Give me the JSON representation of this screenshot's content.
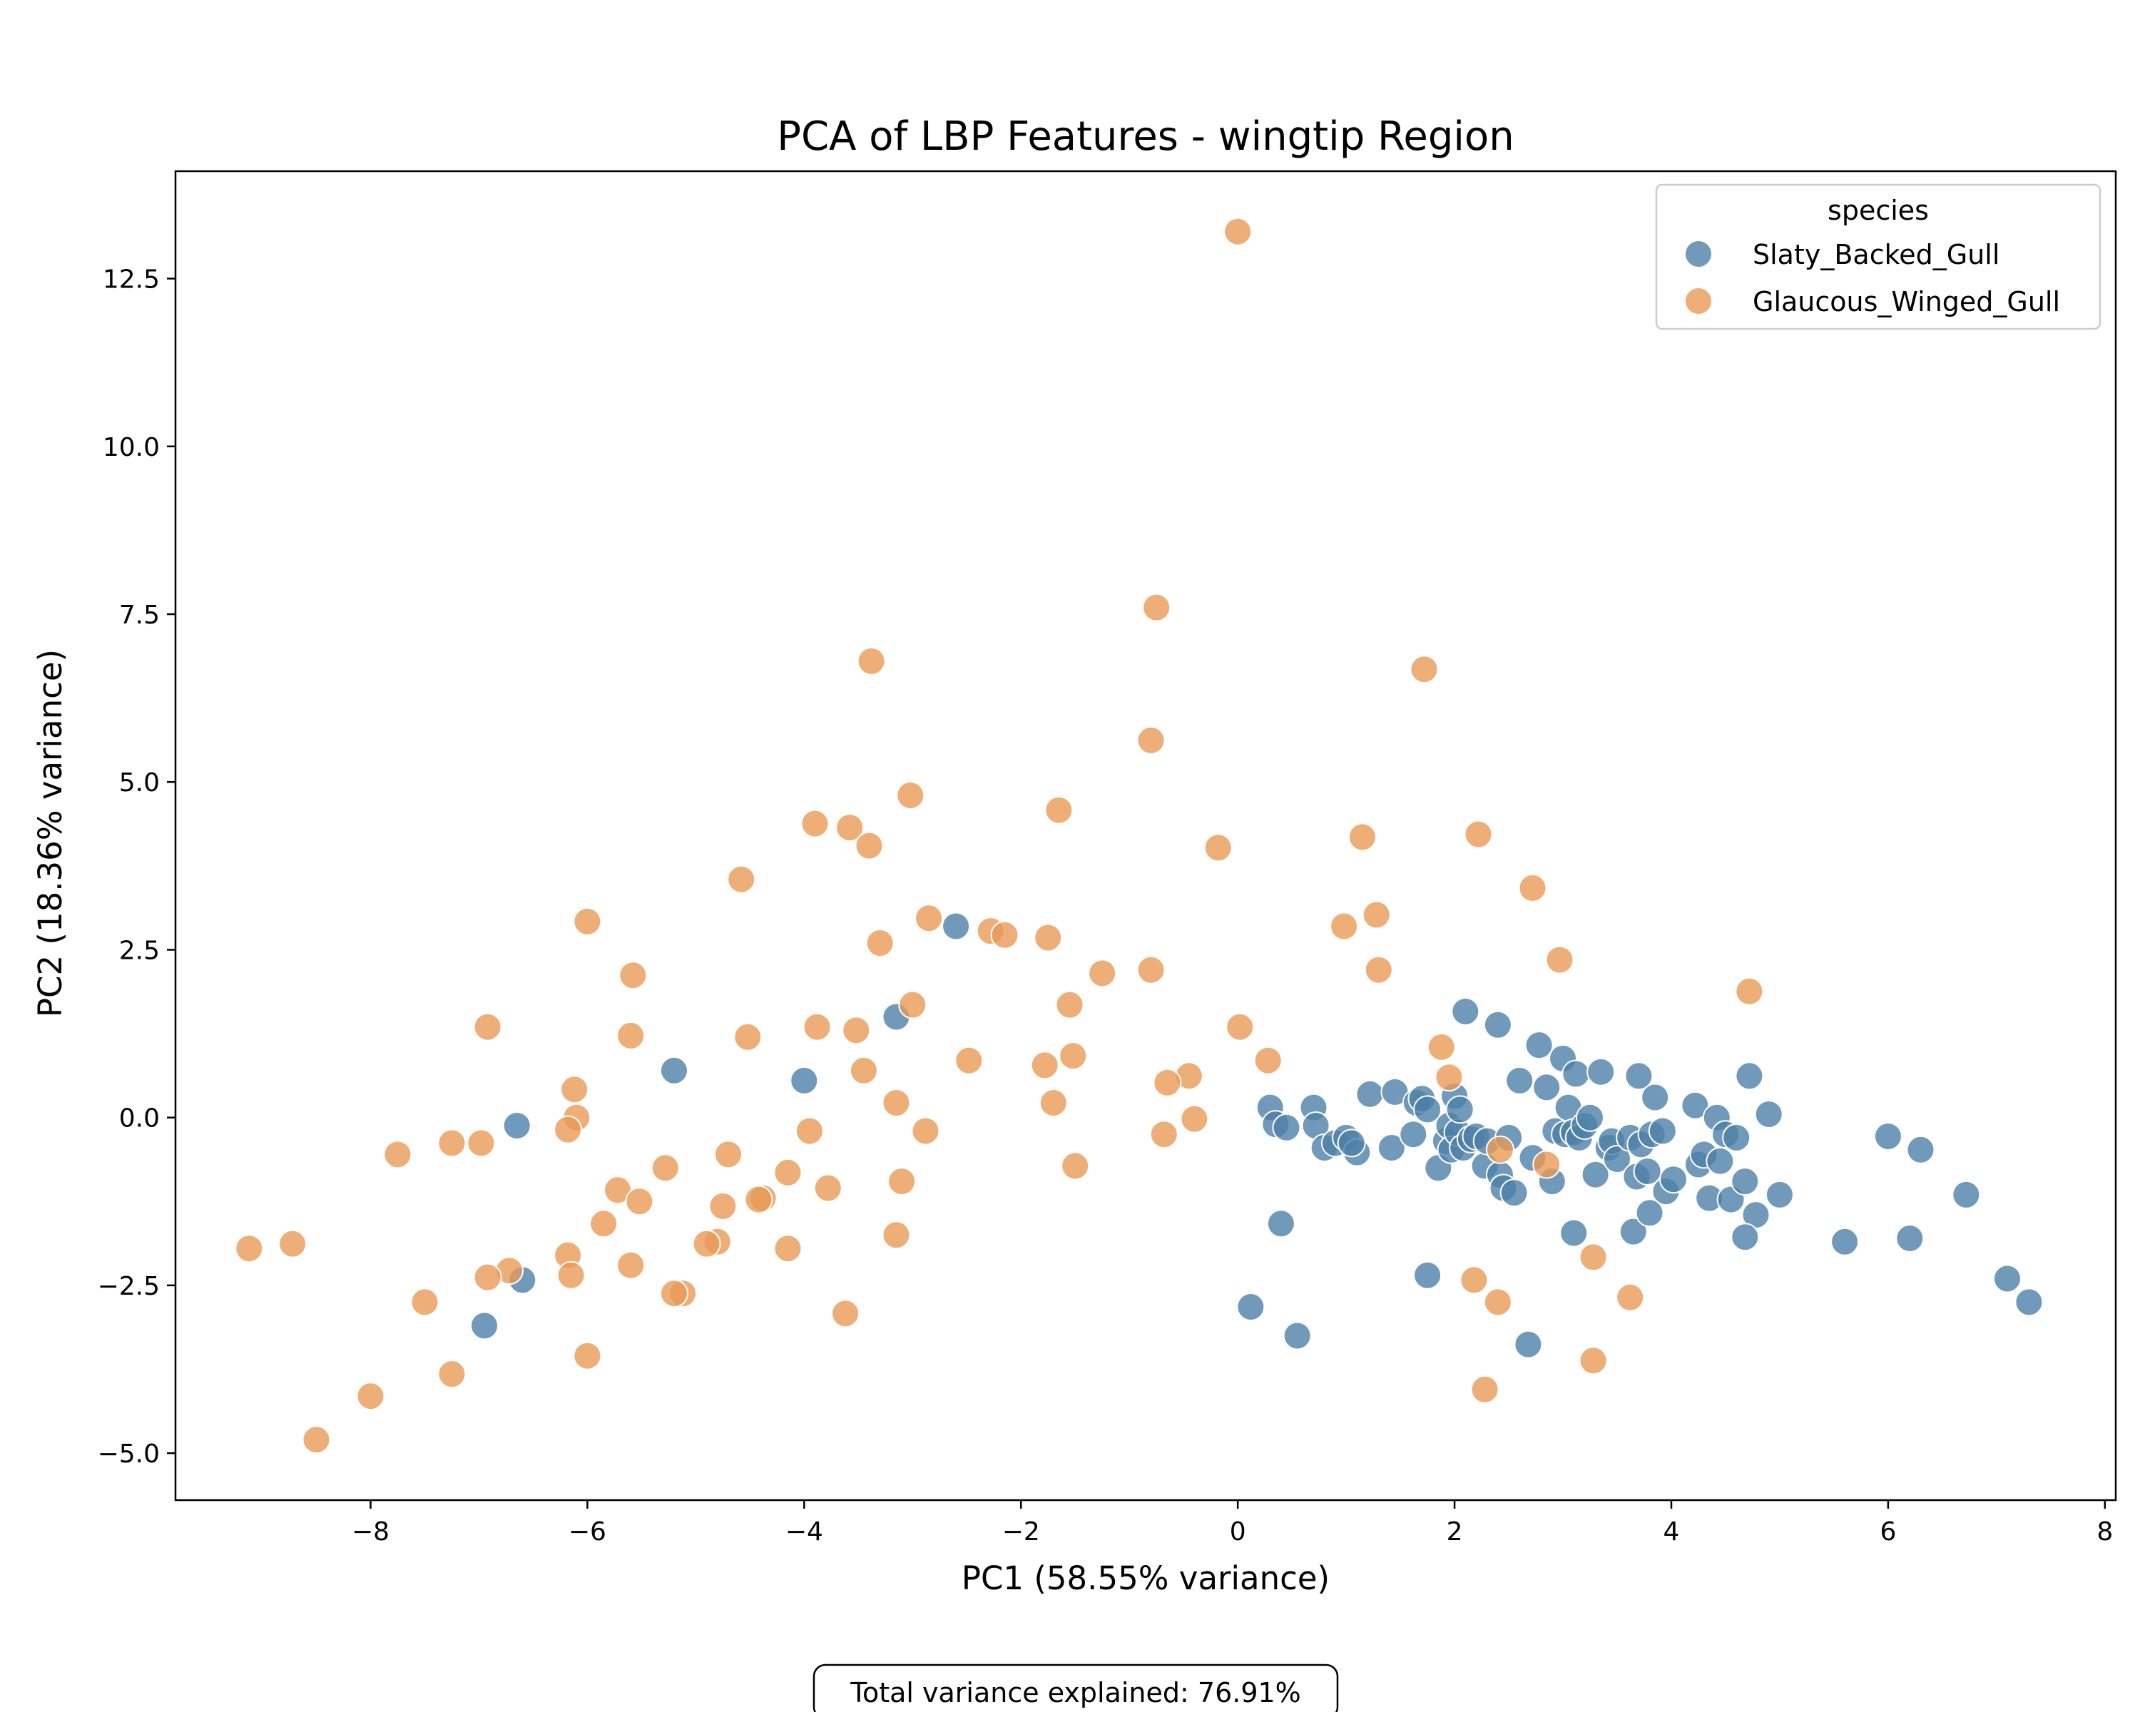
{
  "chart_data": {
    "type": "scatter",
    "title": "PCA of LBP Features - wingtip Region",
    "xlabel": "PC1 (58.55% variance)",
    "ylabel": "PC2 (18.36% variance)",
    "xlim": [
      -9.8,
      8.1
    ],
    "ylim": [
      -5.7,
      14.1
    ],
    "xticks": [
      -8,
      -6,
      -4,
      -2,
      0,
      2,
      4,
      6,
      8
    ],
    "xtick_labels": [
      "−8",
      "−6",
      "−4",
      "−2",
      "0",
      "2",
      "4",
      "6",
      "8"
    ],
    "yticks": [
      -5.0,
      -2.5,
      0.0,
      2.5,
      5.0,
      7.5,
      10.0,
      12.5
    ],
    "ytick_labels": [
      "−5.0",
      "−2.5",
      "0.0",
      "2.5",
      "5.0",
      "7.5",
      "10.0",
      "12.5"
    ],
    "grid": false,
    "legend": {
      "title": "species",
      "position": "top-right"
    },
    "annotation": "Total variance explained: 76.91%",
    "series": [
      {
        "name": "Slaty_Backed_Gull",
        "color": "#4e80a8",
        "points": [
          [
            -2.6,
            2.85
          ],
          [
            -3.15,
            1.5
          ],
          [
            -5.2,
            0.7
          ],
          [
            -4.0,
            0.55
          ],
          [
            -6.65,
            -0.12
          ],
          [
            -6.6,
            -2.42
          ],
          [
            -6.95,
            -3.1
          ],
          [
            0.3,
            0.15
          ],
          [
            0.35,
            -0.1
          ],
          [
            0.45,
            -0.15
          ],
          [
            0.7,
            0.15
          ],
          [
            0.72,
            -0.12
          ],
          [
            0.8,
            -0.45
          ],
          [
            0.9,
            -0.38
          ],
          [
            1.0,
            -0.3
          ],
          [
            1.1,
            -0.52
          ],
          [
            1.05,
            -0.38
          ],
          [
            1.22,
            0.35
          ],
          [
            1.45,
            0.38
          ],
          [
            1.42,
            -0.45
          ],
          [
            1.62,
            -0.25
          ],
          [
            1.65,
            0.22
          ],
          [
            1.7,
            0.28
          ],
          [
            1.75,
            0.12
          ],
          [
            1.85,
            -0.75
          ],
          [
            1.92,
            -0.35
          ],
          [
            1.95,
            -0.12
          ],
          [
            1.97,
            -0.48
          ],
          [
            2.0,
            0.32
          ],
          [
            2.03,
            -0.22
          ],
          [
            2.05,
            0.12
          ],
          [
            2.08,
            -0.45
          ],
          [
            2.1,
            1.58
          ],
          [
            2.15,
            -0.32
          ],
          [
            2.2,
            -0.28
          ],
          [
            2.28,
            -0.72
          ],
          [
            2.3,
            -0.35
          ],
          [
            2.4,
            1.38
          ],
          [
            2.42,
            -0.85
          ],
          [
            2.45,
            -1.05
          ],
          [
            2.5,
            -0.3
          ],
          [
            2.55,
            -1.12
          ],
          [
            2.6,
            0.55
          ],
          [
            2.72,
            -0.6
          ],
          [
            2.78,
            1.08
          ],
          [
            2.85,
            0.45
          ],
          [
            2.9,
            -0.95
          ],
          [
            2.93,
            -0.2
          ],
          [
            3.0,
            0.88
          ],
          [
            3.02,
            -0.25
          ],
          [
            3.05,
            0.15
          ],
          [
            3.1,
            -0.22
          ],
          [
            3.12,
            0.65
          ],
          [
            3.15,
            -0.3
          ],
          [
            3.2,
            -0.12
          ],
          [
            3.25,
            0.0
          ],
          [
            3.3,
            -0.85
          ],
          [
            3.35,
            0.68
          ],
          [
            3.42,
            -0.45
          ],
          [
            3.45,
            -0.35
          ],
          [
            3.5,
            -0.62
          ],
          [
            3.62,
            -0.3
          ],
          [
            3.68,
            -0.88
          ],
          [
            3.7,
            0.62
          ],
          [
            3.72,
            -0.4
          ],
          [
            3.78,
            -0.8
          ],
          [
            3.82,
            -0.25
          ],
          [
            3.85,
            0.3
          ],
          [
            3.92,
            -0.2
          ],
          [
            3.95,
            -1.1
          ],
          [
            4.02,
            -0.92
          ],
          [
            4.22,
            0.18
          ],
          [
            4.25,
            -0.7
          ],
          [
            4.3,
            -0.55
          ],
          [
            4.35,
            -1.2
          ],
          [
            4.42,
            0.0
          ],
          [
            4.45,
            -0.65
          ],
          [
            4.5,
            -0.25
          ],
          [
            4.55,
            -1.22
          ],
          [
            4.6,
            -0.3
          ],
          [
            4.68,
            -0.95
          ],
          [
            4.72,
            0.62
          ],
          [
            4.78,
            -1.45
          ],
          [
            4.9,
            0.05
          ],
          [
            5.0,
            -1.15
          ],
          [
            3.1,
            -1.72
          ],
          [
            3.65,
            -1.7
          ],
          [
            3.8,
            -1.42
          ],
          [
            4.68,
            -1.78
          ],
          [
            0.4,
            -1.58
          ],
          [
            0.12,
            -2.82
          ],
          [
            0.55,
            -3.25
          ],
          [
            1.75,
            -2.35
          ],
          [
            2.68,
            -3.38
          ],
          [
            5.6,
            -1.85
          ],
          [
            6.0,
            -0.28
          ],
          [
            6.2,
            -1.8
          ],
          [
            6.3,
            -0.48
          ],
          [
            6.72,
            -1.15
          ],
          [
            7.1,
            -2.4
          ],
          [
            7.3,
            -2.75
          ]
        ]
      },
      {
        "name": "Glaucous_Winged_Gull",
        "color": "#e89a56",
        "points": [
          [
            0.0,
            13.2
          ],
          [
            -0.75,
            7.6
          ],
          [
            -3.38,
            6.8
          ],
          [
            1.72,
            6.68
          ],
          [
            -0.8,
            5.62
          ],
          [
            -3.02,
            4.8
          ],
          [
            -1.65,
            4.58
          ],
          [
            -3.9,
            4.38
          ],
          [
            -3.58,
            4.32
          ],
          [
            -3.4,
            4.05
          ],
          [
            -0.18,
            4.02
          ],
          [
            1.15,
            4.18
          ],
          [
            2.22,
            4.22
          ],
          [
            -4.58,
            3.55
          ],
          [
            2.72,
            3.42
          ],
          [
            -6.0,
            2.92
          ],
          [
            -2.85,
            2.97
          ],
          [
            1.28,
            3.02
          ],
          [
            0.98,
            2.85
          ],
          [
            -2.28,
            2.78
          ],
          [
            -2.15,
            2.72
          ],
          [
            -1.75,
            2.68
          ],
          [
            -3.3,
            2.6
          ],
          [
            2.97,
            2.35
          ],
          [
            -5.58,
            2.12
          ],
          [
            -1.25,
            2.15
          ],
          [
            -0.8,
            2.2
          ],
          [
            1.3,
            2.2
          ],
          [
            4.72,
            1.88
          ],
          [
            -3.0,
            1.68
          ],
          [
            -1.55,
            1.68
          ],
          [
            -6.92,
            1.35
          ],
          [
            -3.88,
            1.35
          ],
          [
            -3.52,
            1.3
          ],
          [
            0.02,
            1.35
          ],
          [
            -5.6,
            1.22
          ],
          [
            -4.52,
            1.2
          ],
          [
            1.88,
            1.05
          ],
          [
            -1.52,
            0.92
          ],
          [
            -2.48,
            0.85
          ],
          [
            0.28,
            0.85
          ],
          [
            -1.78,
            0.78
          ],
          [
            -3.45,
            0.7
          ],
          [
            -0.45,
            0.62
          ],
          [
            1.95,
            0.6
          ],
          [
            -0.65,
            0.52
          ],
          [
            -6.12,
            0.42
          ],
          [
            -3.15,
            0.22
          ],
          [
            -1.7,
            0.22
          ],
          [
            -6.1,
            0.0
          ],
          [
            -0.4,
            -0.02
          ],
          [
            -6.18,
            -0.18
          ],
          [
            -3.95,
            -0.2
          ],
          [
            -2.88,
            -0.2
          ],
          [
            -0.68,
            -0.25
          ],
          [
            -7.25,
            -0.38
          ],
          [
            -6.98,
            -0.38
          ],
          [
            -7.75,
            -0.55
          ],
          [
            -4.7,
            -0.55
          ],
          [
            2.42,
            -0.48
          ],
          [
            2.85,
            -0.7
          ],
          [
            -5.28,
            -0.75
          ],
          [
            -1.5,
            -0.72
          ],
          [
            -4.15,
            -0.82
          ],
          [
            -3.1,
            -0.95
          ],
          [
            -3.78,
            -1.05
          ],
          [
            -5.72,
            -1.08
          ],
          [
            -5.52,
            -1.25
          ],
          [
            -4.38,
            -1.2
          ],
          [
            -4.42,
            -1.22
          ],
          [
            -4.75,
            -1.32
          ],
          [
            -5.85,
            -1.58
          ],
          [
            -3.15,
            -1.75
          ],
          [
            -4.8,
            -1.85
          ],
          [
            -4.9,
            -1.88
          ],
          [
            -9.12,
            -1.95
          ],
          [
            -8.72,
            -1.88
          ],
          [
            -4.15,
            -1.95
          ],
          [
            -6.18,
            -2.05
          ],
          [
            -5.6,
            -2.2
          ],
          [
            -6.72,
            -2.28
          ],
          [
            -6.15,
            -2.35
          ],
          [
            -6.92,
            -2.38
          ],
          [
            -5.12,
            -2.62
          ],
          [
            -5.2,
            -2.62
          ],
          [
            -7.5,
            -2.75
          ],
          [
            -3.62,
            -2.92
          ],
          [
            3.28,
            -2.08
          ],
          [
            2.18,
            -2.42
          ],
          [
            2.4,
            -2.75
          ],
          [
            3.62,
            -2.68
          ],
          [
            -6.0,
            -3.55
          ],
          [
            -7.25,
            -3.82
          ],
          [
            3.28,
            -3.62
          ],
          [
            -8.0,
            -4.15
          ],
          [
            2.28,
            -4.05
          ],
          [
            -8.5,
            -4.8
          ]
        ]
      }
    ]
  }
}
